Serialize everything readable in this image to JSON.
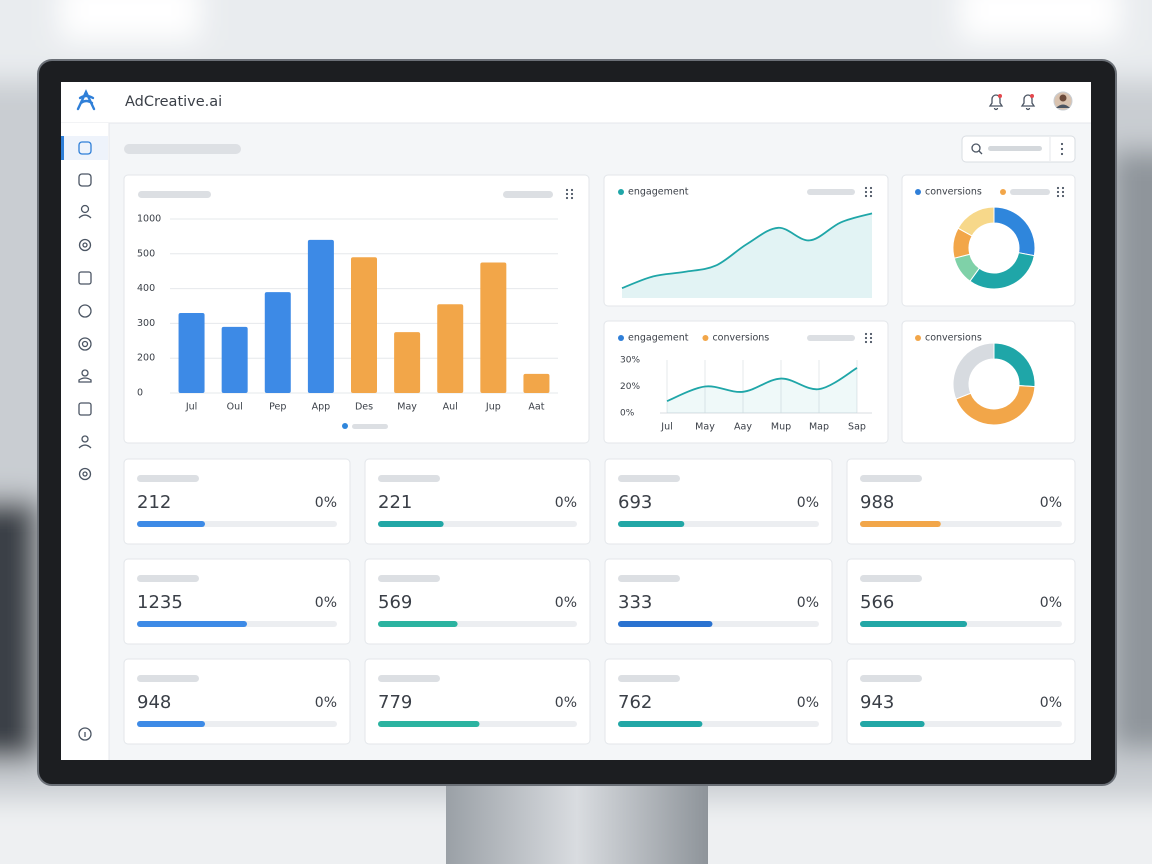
{
  "app": {
    "brand": "AdCreative.ai"
  },
  "chart_data": [
    {
      "type": "bar",
      "categories": [
        "Jul",
        "Oul",
        "Pep",
        "App",
        "Des",
        "May",
        "Aul",
        "Jup",
        "Aat"
      ],
      "values": [
        330,
        290,
        390,
        700,
        490,
        275,
        355,
        475,
        110
      ],
      "colors": [
        "#3d8ae6",
        "#3d8ae6",
        "#3d8ae6",
        "#3d8ae6",
        "#f2a649",
        "#f2a649",
        "#f2a649",
        "#f2a649",
        "#f2a649"
      ],
      "ylim": [
        0,
        1000
      ],
      "yticks": [
        0,
        200,
        300,
        400,
        500,
        1000
      ],
      "grid": true
    },
    {
      "type": "line",
      "area": true,
      "series": [
        {
          "name": "engagement",
          "color": "#1fa6a8",
          "values": [
            11,
            24,
            29,
            36,
            60,
            78,
            64,
            84,
            94
          ]
        }
      ],
      "ylim": [
        0,
        100
      ]
    },
    {
      "type": "line",
      "legend": [
        {
          "name": "engagement",
          "color": "#2f7fd8"
        },
        {
          "name": "conversions",
          "color": "#f2a649"
        }
      ],
      "categories": [
        "Jul",
        "May",
        "Aay",
        "Mup",
        "Map",
        "Sap"
      ],
      "series": [
        {
          "color": "#1fa6a8",
          "values": [
            9,
            20,
            16,
            23,
            18,
            27
          ]
        }
      ],
      "ylim": [
        0,
        30
      ],
      "yticks": [
        {
          "value": 0,
          "label": "0%"
        },
        {
          "value": 20,
          "label": "20%"
        },
        {
          "value": 30,
          "label": "30%"
        }
      ],
      "grid": true
    },
    {
      "type": "pie",
      "donut": true,
      "legend": [
        {
          "name": "conversions",
          "color": "#2f7fd8"
        }
      ],
      "values": [
        28,
        32,
        11,
        12,
        17
      ],
      "colors": [
        "#2f86dc",
        "#1fa6a8",
        "#7fd1a8",
        "#f2a649",
        "#f7d88a"
      ]
    },
    {
      "type": "pie",
      "donut": true,
      "legend": [
        {
          "name": "conversions",
          "color": "#f2a649"
        }
      ],
      "values": [
        26,
        43,
        31
      ],
      "colors": [
        "#1fa6a8",
        "#f2a649",
        "#d7dbe0"
      ]
    }
  ],
  "progress_range": [
    0,
    100
  ],
  "stat_cards": [
    {
      "value": 212,
      "change": "0%",
      "progress": 34,
      "color": "#3d8ae6"
    },
    {
      "value": 221,
      "change": "0%",
      "progress": 33,
      "color": "#22a7a6"
    },
    {
      "value": 693,
      "change": "0%",
      "progress": 33,
      "color": "#22a7a6"
    },
    {
      "value": 988,
      "change": "0%",
      "progress": 40,
      "color": "#f2a649"
    },
    {
      "value": 1235,
      "change": "0%",
      "progress": 55,
      "color": "#3d8ae6"
    },
    {
      "value": 569,
      "change": "0%",
      "progress": 40,
      "color": "#2bb3a0"
    },
    {
      "value": 333,
      "change": "0%",
      "progress": 47,
      "color": "#2a72d0"
    },
    {
      "value": 566,
      "change": "0%",
      "progress": 53,
      "color": "#22a7a6"
    },
    {
      "value": 948,
      "change": "0%",
      "progress": 34,
      "color": "#3d8ae6"
    },
    {
      "value": 779,
      "change": "0%",
      "progress": 51,
      "color": "#2bb3a0"
    },
    {
      "value": 762,
      "change": "0%",
      "progress": 42,
      "color": "#22a7a6"
    },
    {
      "value": 943,
      "change": "0%",
      "progress": 32,
      "color": "#22a7a6"
    }
  ]
}
